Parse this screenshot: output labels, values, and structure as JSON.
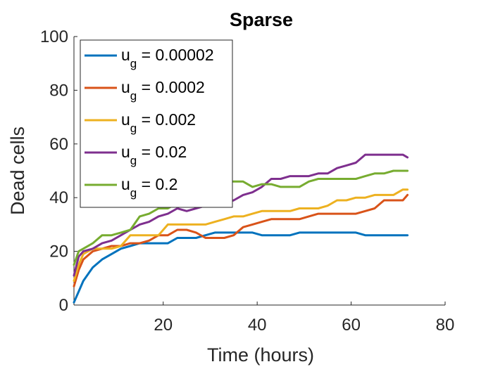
{
  "chart_data": {
    "type": "line",
    "title": "Sparse",
    "xlabel": "Time (hours)",
    "ylabel": "Dead cells",
    "xlim": [
      1,
      80
    ],
    "ylim": [
      0,
      100
    ],
    "xticks": [
      20,
      40,
      60,
      80
    ],
    "yticks": [
      0,
      20,
      40,
      60,
      80,
      100
    ],
    "xtick_labels": [
      "20",
      "40",
      "60",
      "80"
    ],
    "ytick_labels": [
      "0",
      "20",
      "40",
      "60",
      "80",
      "100"
    ],
    "grid": false,
    "legend_position": "top-left",
    "x": [
      1,
      2,
      3,
      5,
      7,
      9,
      11,
      13,
      15,
      17,
      19,
      21,
      23,
      25,
      27,
      29,
      31,
      33,
      35,
      37,
      39,
      41,
      43,
      45,
      47,
      49,
      51,
      53,
      55,
      57,
      59,
      61,
      63,
      65,
      67,
      69,
      71,
      72
    ],
    "series": [
      {
        "name": "u_g = 0.00002",
        "legend_base": "u",
        "legend_sub": "g",
        "legend_rest": " = 0.00002",
        "color": "#0072BD",
        "values": [
          1,
          5,
          9,
          14,
          17,
          19,
          21,
          22,
          23,
          23,
          23,
          23,
          25,
          25,
          25,
          26,
          27,
          27,
          27,
          27,
          27,
          26,
          26,
          26,
          26,
          27,
          27,
          27,
          27,
          27,
          27,
          27,
          26,
          26,
          26,
          26,
          26,
          26
        ]
      },
      {
        "name": "u_g = 0.0002",
        "legend_base": "u",
        "legend_sub": "g",
        "legend_rest": " = 0.0002",
        "color": "#D95319",
        "values": [
          7,
          13,
          17,
          20,
          21,
          22,
          22,
          23,
          23,
          24,
          26,
          26,
          28,
          28,
          27,
          25,
          25,
          25,
          26,
          29,
          30,
          31,
          32,
          32,
          32,
          32,
          33,
          34,
          34,
          34,
          34,
          34,
          35,
          36,
          39,
          39,
          39,
          41
        ]
      },
      {
        "name": "u_g = 0.002",
        "legend_base": "u",
        "legend_sub": "g",
        "legend_rest": " = 0.002",
        "color": "#EDB120",
        "values": [
          9,
          15,
          19,
          21,
          21,
          21,
          22,
          26,
          26,
          26,
          26,
          30,
          30,
          30,
          30,
          30,
          31,
          32,
          33,
          33,
          34,
          35,
          35,
          35,
          35,
          36,
          36,
          36,
          37,
          39,
          39,
          40,
          40,
          41,
          41,
          41,
          43,
          43
        ]
      },
      {
        "name": "u_g = 0.02",
        "legend_base": "u",
        "legend_sub": "g",
        "legend_rest": " = 0.02",
        "color": "#7E2F8E",
        "values": [
          11,
          18,
          20,
          21,
          23,
          24,
          26,
          28,
          30,
          31,
          33,
          34,
          36,
          35,
          36,
          37,
          38,
          38,
          39,
          41,
          42,
          44,
          47,
          47,
          48,
          48,
          48,
          49,
          49,
          51,
          52,
          53,
          56,
          56,
          56,
          56,
          56,
          55
        ]
      },
      {
        "name": "u_g = 0.2",
        "legend_base": "u",
        "legend_sub": "g",
        "legend_rest": " = 0.2",
        "color": "#77AC30",
        "values": [
          15,
          20,
          21,
          23,
          26,
          26,
          27,
          28,
          33,
          34,
          36,
          36,
          38,
          38,
          40,
          42,
          44,
          46,
          46,
          46,
          44,
          45,
          45,
          44,
          44,
          44,
          46,
          47,
          47,
          47,
          47,
          47,
          48,
          49,
          49,
          50,
          50,
          50
        ]
      }
    ]
  }
}
